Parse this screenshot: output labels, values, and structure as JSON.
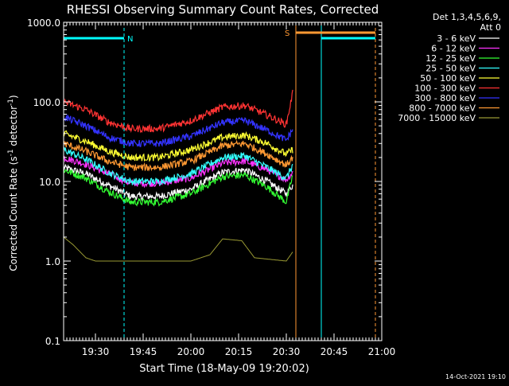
{
  "chart_data": {
    "type": "line",
    "title": "RHESSI Observing Summary Count Rates, Corrected",
    "xlabel": "Start Time (18-May-09 19:20:02)",
    "ylabel_main": "Corrected Count Rate (s",
    "ylabel_sup1": "-1",
    "ylabel_mid": " detector",
    "ylabel_sup2": "-1",
    "ylabel_end": ")",
    "y_scale": "log",
    "ylim": [
      0.1,
      1000.0
    ],
    "xlim_minutes": [
      0,
      100
    ],
    "x_ticks": [
      {
        "min": 10,
        "label": "19:30"
      },
      {
        "min": 25,
        "label": "19:45"
      },
      {
        "min": 40,
        "label": "20:00"
      },
      {
        "min": 55,
        "label": "20:15"
      },
      {
        "min": 70,
        "label": "20:30"
      },
      {
        "min": 85,
        "label": "20:45"
      },
      {
        "min": 100,
        "label": "21:00"
      }
    ],
    "y_ticks": [
      {
        "value": 1000,
        "label": "1000.0"
      },
      {
        "value": 100,
        "label": "100.0"
      },
      {
        "value": 10,
        "label": "10.0"
      },
      {
        "value": 1,
        "label": "1.0"
      },
      {
        "value": 0.1,
        "label": "0.1"
      }
    ],
    "legend_header": [
      "Det 1,3,4,5,6,9,",
      "Att 0"
    ],
    "legend_position": "right",
    "series": [
      {
        "name": "3 - 6 keV",
        "color": "#ffffff",
        "knots": [
          [
            0,
            15
          ],
          [
            7,
            12.5
          ],
          [
            14,
            9
          ],
          [
            21,
            6.5
          ],
          [
            30,
            6.5
          ],
          [
            40,
            8
          ],
          [
            50,
            13
          ],
          [
            57,
            14
          ],
          [
            64,
            10
          ],
          [
            70,
            7
          ],
          [
            72,
            9
          ]
        ]
      },
      {
        "name": "6 - 12 keV",
        "color": "#ff33ff",
        "knots": [
          [
            0,
            20
          ],
          [
            7,
            16.5
          ],
          [
            14,
            12.5
          ],
          [
            21,
            9.5
          ],
          [
            30,
            9.5
          ],
          [
            40,
            11
          ],
          [
            50,
            17
          ],
          [
            57,
            18
          ],
          [
            64,
            14
          ],
          [
            70,
            10.5
          ],
          [
            72,
            13
          ]
        ]
      },
      {
        "name": "12 - 25 keV",
        "color": "#33ff33",
        "knots": [
          [
            0,
            14
          ],
          [
            7,
            11
          ],
          [
            14,
            7.5
          ],
          [
            21,
            5.5
          ],
          [
            30,
            5.5
          ],
          [
            40,
            7
          ],
          [
            50,
            11.5
          ],
          [
            57,
            12
          ],
          [
            64,
            8.5
          ],
          [
            70,
            5.5
          ],
          [
            72,
            12
          ]
        ]
      },
      {
        "name": "25 - 50 keV",
        "color": "#33ffff",
        "knots": [
          [
            0,
            25
          ],
          [
            7,
            19
          ],
          [
            14,
            13
          ],
          [
            21,
            10
          ],
          [
            30,
            10
          ],
          [
            40,
            12.5
          ],
          [
            50,
            20
          ],
          [
            57,
            21
          ],
          [
            64,
            15
          ],
          [
            70,
            11
          ],
          [
            72,
            16
          ]
        ]
      },
      {
        "name": "50 - 100 keV",
        "color": "#ffff33",
        "knots": [
          [
            0,
            40
          ],
          [
            7,
            32
          ],
          [
            14,
            24
          ],
          [
            21,
            20
          ],
          [
            30,
            20
          ],
          [
            40,
            25
          ],
          [
            50,
            36
          ],
          [
            57,
            38
          ],
          [
            64,
            30
          ],
          [
            70,
            22
          ],
          [
            72,
            25
          ]
        ]
      },
      {
        "name": "100 - 300 keV",
        "color": "#ff3333",
        "knots": [
          [
            0,
            100
          ],
          [
            7,
            80
          ],
          [
            14,
            56
          ],
          [
            21,
            46
          ],
          [
            30,
            46
          ],
          [
            40,
            58
          ],
          [
            50,
            86
          ],
          [
            57,
            90
          ],
          [
            64,
            68
          ],
          [
            70,
            52
          ],
          [
            72,
            130
          ]
        ]
      },
      {
        "name": "300 - 800 keV",
        "color": "#3333ff",
        "knots": [
          [
            0,
            65
          ],
          [
            7,
            50
          ],
          [
            14,
            36
          ],
          [
            21,
            30
          ],
          [
            30,
            30
          ],
          [
            40,
            37
          ],
          [
            50,
            55
          ],
          [
            57,
            58
          ],
          [
            64,
            44
          ],
          [
            70,
            33
          ],
          [
            72,
            45
          ]
        ]
      },
      {
        "name": "800 - 7000 keV",
        "color": "#ff9933",
        "knots": [
          [
            0,
            30
          ],
          [
            7,
            24
          ],
          [
            14,
            18
          ],
          [
            21,
            15
          ],
          [
            30,
            15
          ],
          [
            40,
            18
          ],
          [
            50,
            28
          ],
          [
            57,
            30
          ],
          [
            64,
            22
          ],
          [
            70,
            16
          ],
          [
            72,
            20
          ]
        ]
      },
      {
        "name": "7000 - 15000 keV",
        "color": "#999933",
        "knots": [
          [
            0,
            2
          ],
          [
            3,
            1.6
          ],
          [
            7,
            1.1
          ],
          [
            10,
            1.0
          ],
          [
            40,
            1.0
          ],
          [
            46,
            1.2
          ],
          [
            50,
            1.9
          ],
          [
            56,
            1.8
          ],
          [
            60,
            1.1
          ],
          [
            70,
            1.0
          ],
          [
            72,
            1.3
          ]
        ]
      }
    ],
    "flags": [
      {
        "label": "N",
        "color": "#00ffff",
        "start_min": 0,
        "end_min": 19
      },
      {
        "label": "S",
        "color": "#ff9933",
        "start_min": 73,
        "end_min": 98
      },
      {
        "label": "",
        "color": "#00ffff",
        "start_min": 81,
        "end_min": 98
      }
    ],
    "vlines": [
      {
        "min": 0,
        "color": "#00ffff",
        "dashed": false
      },
      {
        "min": 19,
        "color": "#00ffff",
        "dashed": true
      },
      {
        "min": 73,
        "color": "#ff9933",
        "dashed": false
      },
      {
        "min": 81,
        "color": "#00ffff",
        "dashed": false
      },
      {
        "min": 98,
        "color": "#ff9933",
        "dashed": true
      },
      {
        "min": 100,
        "color": "#00ffff",
        "dashed": true
      }
    ],
    "footer_timestamp": "14-Oct-2021 19:10",
    "axis_color": "#ffffff",
    "background": "#000000",
    "grid": false
  }
}
